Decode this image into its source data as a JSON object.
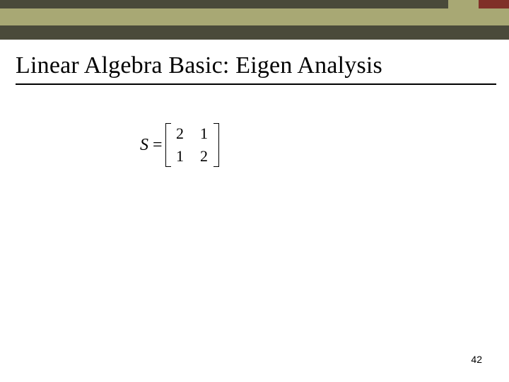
{
  "header": {
    "rows": [
      {
        "height": 12,
        "segments": [
          {
            "width_pct": 88,
            "color": "#4a4a3a"
          },
          {
            "width_pct": 6,
            "color": "#a8a874"
          },
          {
            "width_pct": 6,
            "color": "#803028"
          }
        ]
      },
      {
        "height": 24,
        "segments": [
          {
            "width_pct": 100,
            "color": "#a8a874"
          }
        ]
      },
      {
        "height": 20,
        "segments": [
          {
            "width_pct": 100,
            "color": "#4a4a3a"
          }
        ]
      }
    ]
  },
  "title": "Linear Algebra Basic: Eigen Analysis",
  "title_underline_color": "#000000",
  "matrix": {
    "variable": "S",
    "equals": "=",
    "cells": [
      [
        "2",
        "1"
      ],
      [
        "1",
        "2"
      ]
    ]
  },
  "page_number": "42",
  "background_color": "#ffffff"
}
